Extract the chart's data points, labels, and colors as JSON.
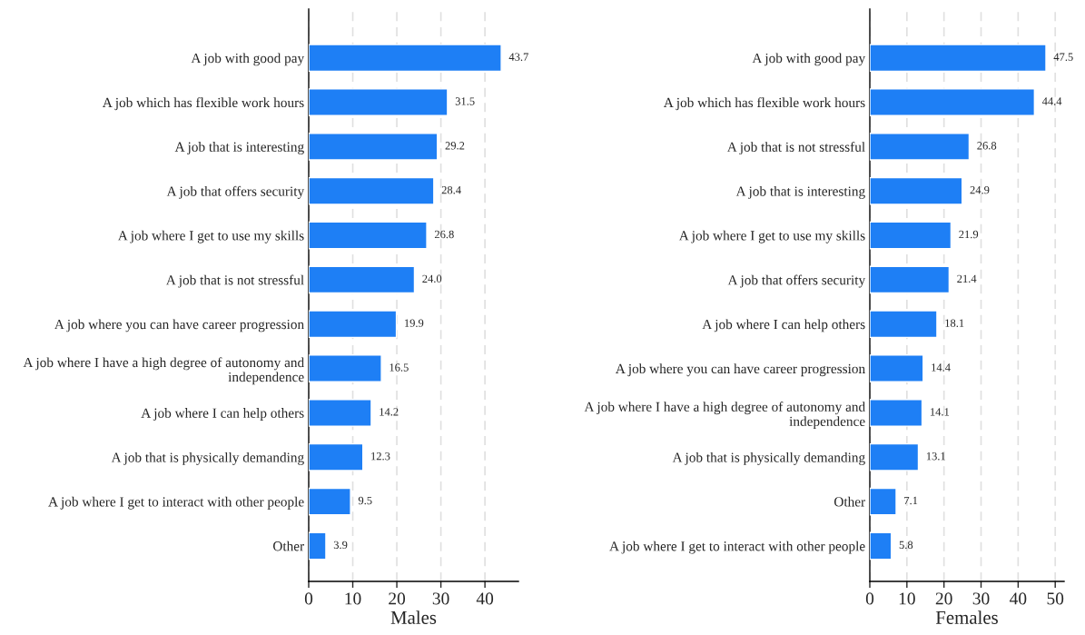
{
  "chart_data": [
    {
      "type": "bar",
      "orientation": "horizontal",
      "xlabel": "Males",
      "categories": [
        "A job with good pay",
        "A job which has flexible work hours",
        "A job that is interesting",
        "A job that offers security",
        "A job where I get to use my skills",
        "A job that is not stressful",
        "A job where you can have career progression",
        "A job where I have a high degree of autonomy and\nindependence",
        "A job where I can help others",
        "A job that is physically demanding",
        "A job where I get to interact with other people",
        "Other"
      ],
      "values": [
        43.7,
        31.5,
        29.2,
        28.4,
        26.8,
        24.0,
        19.9,
        16.5,
        14.2,
        12.3,
        9.5,
        3.9
      ],
      "value_labels": [
        "43.7",
        "31.5",
        "29.2",
        "28.4",
        "26.8",
        "24.0",
        "19.9",
        "16.5",
        "14.2",
        "12.3",
        "9.5",
        "3.9"
      ],
      "color": "#1e7ff5",
      "xlim": [
        0,
        47.6
      ],
      "xticks": [
        0,
        10,
        20,
        30,
        40
      ],
      "grid": "x",
      "legend": false
    },
    {
      "type": "bar",
      "orientation": "horizontal",
      "xlabel": "Females",
      "categories": [
        "A job with good pay",
        "A job which has flexible work hours",
        "A job that is not stressful",
        "A job that is interesting",
        "A job where I get to use my skills",
        "A job that offers security",
        "A job where I can help others",
        "A job where you can have career progression",
        "A job where I have a high degree of autonomy and\nindependence",
        "A job that is physically demanding",
        "Other",
        "A job where I get to interact with other people"
      ],
      "values": [
        47.5,
        44.4,
        26.8,
        24.9,
        21.9,
        21.4,
        18.1,
        14.4,
        14.1,
        13.1,
        7.1,
        5.8
      ],
      "value_labels": [
        "47.5",
        "44.4",
        "26.8",
        "24.9",
        "21.9",
        "21.4",
        "18.1",
        "14.4",
        "14.1",
        "13.1",
        "7.1",
        "5.8"
      ],
      "color": "#1e7ff5",
      "xlim": [
        0,
        52.4
      ],
      "xticks": [
        0,
        10,
        20,
        30,
        40,
        50
      ],
      "grid": "x",
      "legend": false
    }
  ]
}
